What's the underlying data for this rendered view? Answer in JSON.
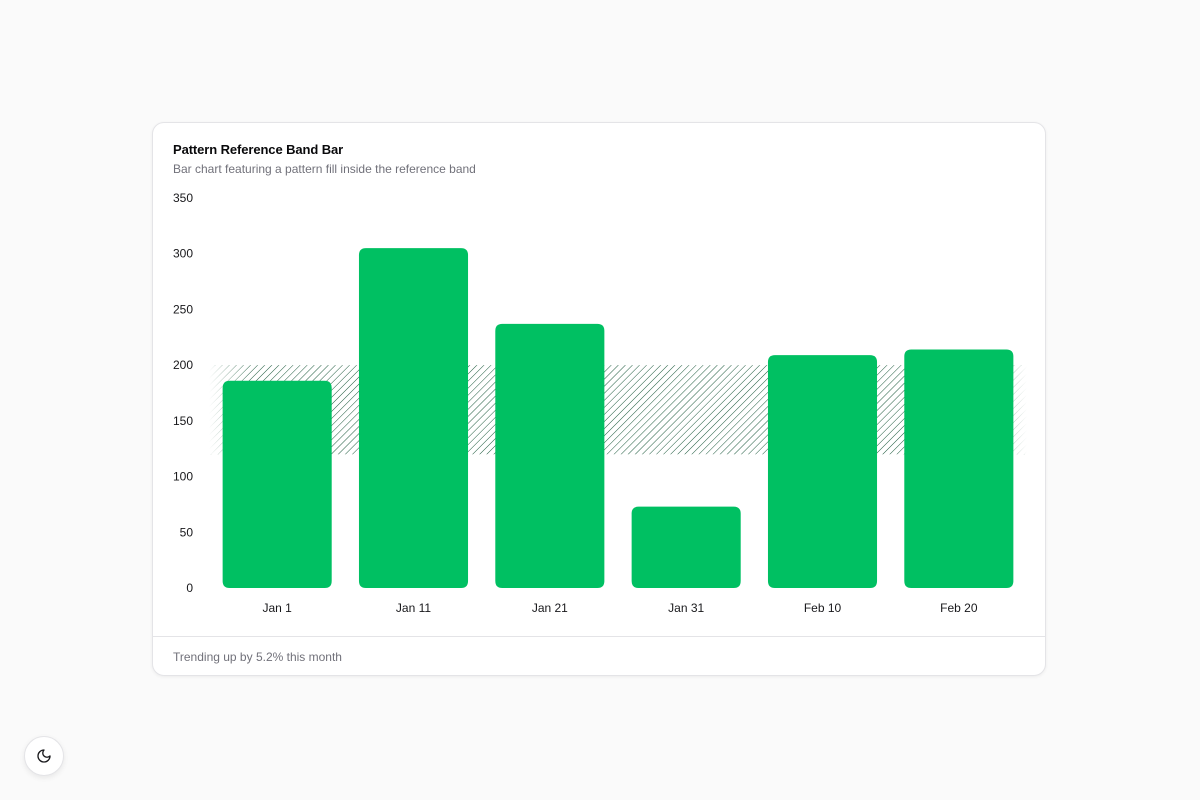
{
  "card": {
    "title": "Pattern Reference Band Bar",
    "subtitle": "Bar chart featuring a pattern fill inside the reference band",
    "footer": "Trending up by 5.2% this month"
  },
  "theme_toggle": {
    "icon": "moon-icon"
  },
  "colors": {
    "bar": "#00c062",
    "band_label": "#00c062",
    "band_pattern": "#1f5c3f",
    "text": "#18181b",
    "muted": "#71717a"
  },
  "chart_data": {
    "type": "bar",
    "categories": [
      "Jan 1",
      "Jan 11",
      "Jan 21",
      "Jan 31",
      "Feb 10",
      "Feb 20"
    ],
    "values": [
      186,
      305,
      237,
      73,
      209,
      214
    ],
    "ylim": [
      0,
      350
    ],
    "yticks": [
      0,
      50,
      100,
      150,
      200,
      250,
      300,
      350
    ],
    "reference_band": {
      "y1": 120,
      "y2": 200,
      "fill": "diagonal-hatch"
    },
    "highlighted_ticks": [
      150,
      200
    ],
    "grid": false,
    "legend": "none"
  }
}
